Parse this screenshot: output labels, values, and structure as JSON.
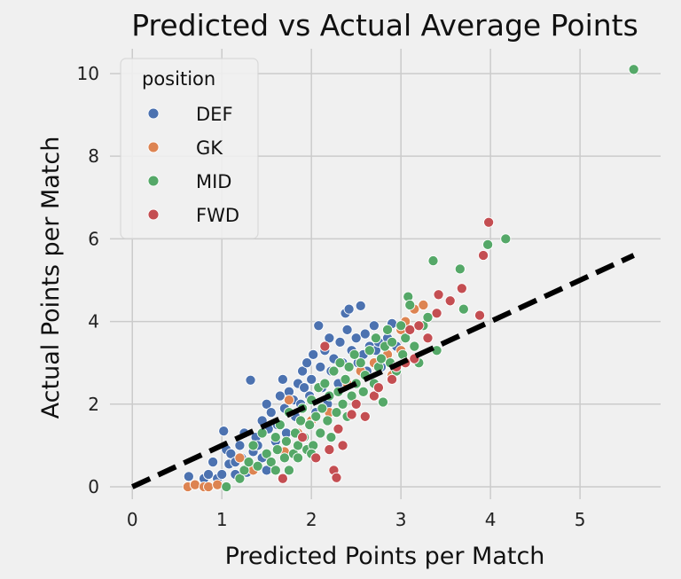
{
  "chart_data": {
    "type": "scatter",
    "title": "Predicted vs Actual Average Points",
    "xlabel": "Predicted Points per Match",
    "ylabel": "Actual Points per Match",
    "xlim": [
      -0.25,
      5.9
    ],
    "ylim": [
      -0.3,
      10.6
    ],
    "xticks": [
      0,
      1,
      2,
      3,
      4,
      5
    ],
    "yticks": [
      0,
      2,
      4,
      6,
      8,
      10
    ],
    "xtick_labels": [
      "0",
      "1",
      "2",
      "3",
      "4",
      "5"
    ],
    "ytick_labels": [
      "0",
      "2",
      "4",
      "6",
      "8",
      "10"
    ],
    "grid": true,
    "legend": {
      "title": "position",
      "placement": "top-left"
    },
    "reference_line": {
      "style": "dashed",
      "color": "#000000",
      "from": [
        0,
        0
      ],
      "to": [
        5.6,
        5.6
      ]
    },
    "series": [
      {
        "name": "DEF",
        "color": "#4c72b0",
        "points": [
          [
            0.63,
            0.25
          ],
          [
            0.8,
            0.2
          ],
          [
            0.85,
            0.3
          ],
          [
            0.9,
            0.6
          ],
          [
            0.95,
            0.2
          ],
          [
            1.0,
            0.3
          ],
          [
            1.02,
            1.35
          ],
          [
            1.05,
            0.9
          ],
          [
            1.08,
            0.55
          ],
          [
            1.1,
            0.8
          ],
          [
            1.15,
            0.6
          ],
          [
            1.2,
            1.0
          ],
          [
            1.22,
            0.7
          ],
          [
            1.25,
            1.3
          ],
          [
            1.3,
            0.5
          ],
          [
            1.35,
            0.85
          ],
          [
            1.32,
            2.58
          ],
          [
            1.38,
            1.2
          ],
          [
            1.4,
            1.0
          ],
          [
            1.45,
            1.6
          ],
          [
            1.5,
            2.0
          ],
          [
            1.52,
            1.4
          ],
          [
            1.55,
            1.8
          ],
          [
            1.6,
            1.1
          ],
          [
            1.62,
            1.5
          ],
          [
            1.65,
            2.2
          ],
          [
            1.68,
            2.6
          ],
          [
            1.7,
            1.9
          ],
          [
            1.72,
            1.3
          ],
          [
            1.75,
            2.3
          ],
          [
            1.8,
            2.1
          ],
          [
            1.82,
            1.7
          ],
          [
            1.85,
            2.5
          ],
          [
            1.88,
            2.0
          ],
          [
            1.9,
            2.8
          ],
          [
            1.92,
            2.4
          ],
          [
            1.95,
            3.0
          ],
          [
            1.98,
            2.2
          ],
          [
            2.0,
            2.6
          ],
          [
            2.02,
            3.2
          ],
          [
            2.05,
            1.8
          ],
          [
            2.08,
            3.9
          ],
          [
            2.1,
            2.9
          ],
          [
            2.12,
            2.4
          ],
          [
            2.15,
            3.3
          ],
          [
            2.18,
            2.0
          ],
          [
            2.2,
            3.6
          ],
          [
            2.22,
            2.8
          ],
          [
            2.25,
            3.1
          ],
          [
            2.3,
            2.5
          ],
          [
            2.32,
            3.5
          ],
          [
            2.35,
            3.0
          ],
          [
            2.38,
            4.2
          ],
          [
            2.4,
            3.8
          ],
          [
            2.42,
            4.3
          ],
          [
            2.45,
            3.3
          ],
          [
            2.5,
            3.6
          ],
          [
            2.52,
            3.0
          ],
          [
            2.55,
            4.38
          ],
          [
            2.58,
            3.2
          ],
          [
            2.6,
            3.7
          ],
          [
            2.62,
            2.8
          ],
          [
            2.65,
            3.4
          ],
          [
            2.7,
            3.9
          ],
          [
            2.72,
            3.3
          ],
          [
            2.75,
            3.5
          ],
          [
            2.78,
            2.9
          ],
          [
            2.85,
            3.6
          ],
          [
            2.9,
            3.95
          ],
          [
            2.95,
            3.4
          ],
          [
            1.15,
            0.3
          ],
          [
            1.28,
            0.35
          ],
          [
            1.5,
            0.4
          ],
          [
            1.45,
            0.7
          ]
        ]
      },
      {
        "name": "GK",
        "color": "#dd8452",
        "points": [
          [
            0.62,
            0.0
          ],
          [
            0.7,
            0.05
          ],
          [
            0.8,
            0.0
          ],
          [
            0.85,
            0.0
          ],
          [
            0.95,
            0.05
          ],
          [
            1.2,
            0.7
          ],
          [
            1.35,
            0.4
          ],
          [
            1.7,
            0.85
          ],
          [
            1.75,
            2.1
          ],
          [
            1.85,
            1.3
          ],
          [
            2.0,
            1.6
          ],
          [
            2.2,
            1.8
          ],
          [
            2.4,
            2.5
          ],
          [
            2.55,
            2.8
          ],
          [
            2.7,
            3.0
          ],
          [
            2.85,
            3.2
          ],
          [
            3.0,
            3.8
          ],
          [
            3.05,
            4.0
          ],
          [
            3.15,
            4.3
          ],
          [
            3.25,
            4.4
          ],
          [
            3.0,
            3.3
          ],
          [
            2.9,
            2.7
          ]
        ]
      },
      {
        "name": "MID",
        "color": "#55a868",
        "points": [
          [
            1.05,
            0.0
          ],
          [
            1.2,
            0.2
          ],
          [
            1.25,
            0.4
          ],
          [
            1.3,
            0.6
          ],
          [
            1.35,
            1.0
          ],
          [
            1.4,
            0.5
          ],
          [
            1.45,
            1.3
          ],
          [
            1.5,
            0.8
          ],
          [
            1.55,
            0.6
          ],
          [
            1.6,
            1.2
          ],
          [
            1.62,
            0.9
          ],
          [
            1.65,
            1.5
          ],
          [
            1.7,
            0.7
          ],
          [
            1.72,
            1.1
          ],
          [
            1.75,
            1.8
          ],
          [
            1.8,
            0.8
          ],
          [
            1.82,
            1.3
          ],
          [
            1.85,
            1.0
          ],
          [
            1.88,
            1.6
          ],
          [
            1.9,
            1.9
          ],
          [
            1.92,
            1.2
          ],
          [
            1.95,
            0.9
          ],
          [
            1.98,
            1.5
          ],
          [
            2.0,
            2.1
          ],
          [
            2.02,
            1.0
          ],
          [
            2.05,
            1.7
          ],
          [
            2.08,
            2.4
          ],
          [
            2.1,
            1.3
          ],
          [
            2.12,
            1.9
          ],
          [
            2.15,
            2.5
          ],
          [
            2.18,
            1.6
          ],
          [
            2.2,
            2.2
          ],
          [
            2.22,
            1.2
          ],
          [
            2.25,
            2.8
          ],
          [
            2.28,
            1.8
          ],
          [
            2.3,
            2.3
          ],
          [
            2.32,
            3.0
          ],
          [
            2.35,
            2.0
          ],
          [
            2.38,
            2.6
          ],
          [
            2.4,
            1.7
          ],
          [
            2.42,
            2.9
          ],
          [
            2.45,
            2.2
          ],
          [
            2.48,
            3.2
          ],
          [
            2.5,
            2.5
          ],
          [
            2.55,
            3.0
          ],
          [
            2.58,
            2.3
          ],
          [
            2.6,
            2.7
          ],
          [
            2.65,
            3.3
          ],
          [
            2.7,
            2.5
          ],
          [
            2.72,
            3.6
          ],
          [
            2.75,
            2.9
          ],
          [
            2.78,
            3.1
          ],
          [
            2.8,
            2.05
          ],
          [
            2.82,
            3.4
          ],
          [
            2.85,
            3.8
          ],
          [
            2.88,
            3.0
          ],
          [
            2.9,
            3.5
          ],
          [
            2.95,
            2.8
          ],
          [
            3.0,
            3.9
          ],
          [
            3.02,
            3.2
          ],
          [
            3.05,
            3.6
          ],
          [
            3.08,
            4.6
          ],
          [
            3.1,
            4.4
          ],
          [
            3.15,
            3.4
          ],
          [
            3.2,
            3.0
          ],
          [
            3.25,
            3.9
          ],
          [
            3.3,
            4.1
          ],
          [
            3.36,
            5.47
          ],
          [
            3.4,
            3.3
          ],
          [
            3.66,
            5.27
          ],
          [
            3.7,
            4.3
          ],
          [
            3.97,
            5.86
          ],
          [
            4.17,
            6.0
          ],
          [
            5.6,
            10.1
          ],
          [
            1.6,
            0.4
          ],
          [
            1.75,
            0.4
          ],
          [
            2.0,
            0.8
          ],
          [
            1.85,
            0.7
          ]
        ]
      },
      {
        "name": "FWD",
        "color": "#c44e52",
        "points": [
          [
            1.68,
            0.2
          ],
          [
            1.9,
            1.2
          ],
          [
            2.05,
            0.7
          ],
          [
            2.2,
            0.9
          ],
          [
            2.25,
            0.4
          ],
          [
            2.28,
            0.22
          ],
          [
            2.3,
            1.4
          ],
          [
            2.35,
            1.0
          ],
          [
            2.45,
            1.75
          ],
          [
            2.6,
            1.7
          ],
          [
            2.7,
            2.2
          ],
          [
            2.75,
            2.4
          ],
          [
            2.9,
            2.6
          ],
          [
            2.95,
            2.9
          ],
          [
            3.05,
            3.0
          ],
          [
            3.1,
            3.8
          ],
          [
            3.15,
            3.1
          ],
          [
            3.2,
            3.9
          ],
          [
            3.3,
            3.6
          ],
          [
            3.4,
            4.2
          ],
          [
            3.42,
            4.65
          ],
          [
            3.55,
            4.5
          ],
          [
            3.68,
            4.8
          ],
          [
            3.88,
            4.15
          ],
          [
            3.92,
            5.6
          ],
          [
            3.98,
            6.4
          ],
          [
            2.15,
            3.4
          ],
          [
            2.5,
            2.0
          ]
        ]
      }
    ]
  }
}
